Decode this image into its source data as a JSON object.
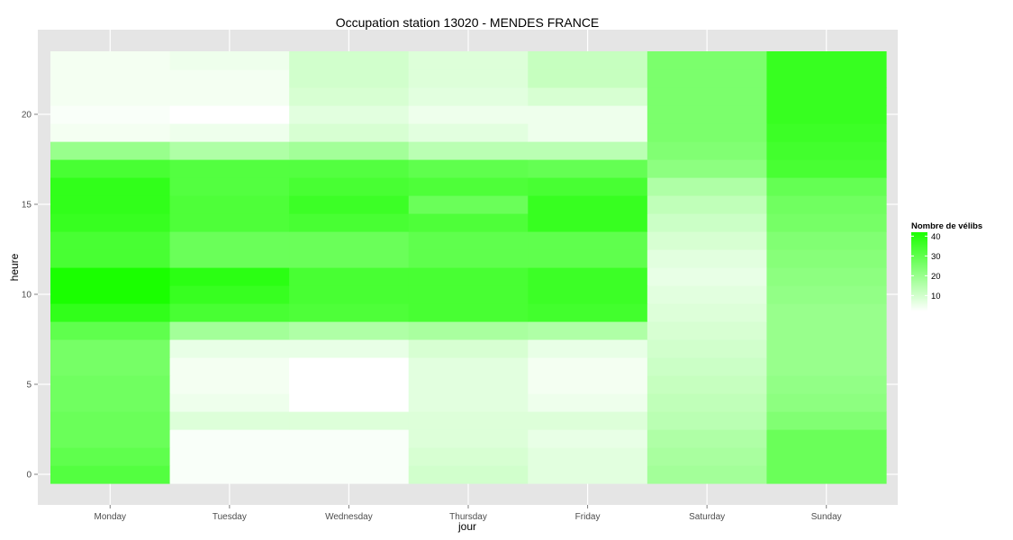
{
  "chart_data": {
    "type": "heatmap",
    "title": "Occupation station 13020 - MENDES FRANCE",
    "xlabel": "jour",
    "ylabel": "heure",
    "x_categories": [
      "Monday",
      "Tuesday",
      "Wednesday",
      "Thursday",
      "Friday",
      "Saturday",
      "Sunday"
    ],
    "y_hours": [
      0,
      1,
      2,
      3,
      4,
      5,
      6,
      7,
      8,
      9,
      10,
      11,
      12,
      13,
      14,
      15,
      16,
      17,
      18,
      19,
      20,
      21,
      22,
      23
    ],
    "y_ticks": [
      0,
      5,
      10,
      15,
      20
    ],
    "value_range": [
      2,
      42
    ],
    "low_color": "#ffffff",
    "high_color": "#1aff00",
    "values": [
      [
        32,
        3,
        3,
        10,
        7,
        18,
        28
      ],
      [
        30,
        3,
        3,
        9,
        7,
        17,
        28
      ],
      [
        28,
        3,
        3,
        8,
        6,
        16,
        28
      ],
      [
        28,
        8,
        8,
        8,
        8,
        14,
        24
      ],
      [
        27,
        5,
        2,
        7,
        5,
        13,
        22
      ],
      [
        27,
        4,
        2,
        7,
        4,
        12,
        21
      ],
      [
        26,
        4,
        2,
        7,
        4,
        11,
        20
      ],
      [
        26,
        6,
        6,
        9,
        6,
        10,
        20
      ],
      [
        30,
        18,
        16,
        17,
        16,
        9,
        20
      ],
      [
        38,
        34,
        33,
        34,
        35,
        8,
        20
      ],
      [
        42,
        37,
        34,
        34,
        36,
        7,
        21
      ],
      [
        42,
        39,
        34,
        34,
        36,
        6,
        22
      ],
      [
        34,
        28,
        28,
        30,
        30,
        7,
        23
      ],
      [
        34,
        28,
        28,
        30,
        30,
        9,
        24
      ],
      [
        37,
        33,
        34,
        33,
        37,
        11,
        26
      ],
      [
        38,
        33,
        36,
        28,
        37,
        13,
        27
      ],
      [
        38,
        32,
        34,
        33,
        34,
        16,
        29
      ],
      [
        34,
        32,
        32,
        30,
        29,
        22,
        34
      ],
      [
        20,
        16,
        18,
        14,
        14,
        24,
        35
      ],
      [
        4,
        5,
        9,
        7,
        5,
        25,
        36
      ],
      [
        3,
        2,
        7,
        5,
        5,
        25,
        37
      ],
      [
        4,
        4,
        9,
        7,
        9,
        25,
        37
      ],
      [
        4,
        4,
        10,
        8,
        12,
        25,
        37
      ],
      [
        4,
        5,
        10,
        8,
        12,
        25,
        37
      ]
    ],
    "legend": {
      "title": "Nombre de vélibs",
      "breaks": [
        40,
        30,
        20,
        10
      ],
      "position": "right"
    },
    "grid": true
  }
}
